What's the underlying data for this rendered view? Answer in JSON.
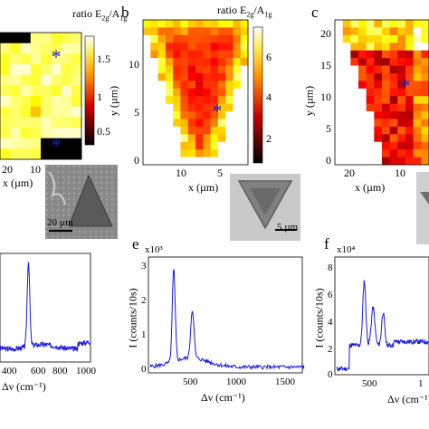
{
  "panel_a": {
    "letter": "",
    "cbar_label": "ratio E$_{2g}$/A$_{1g}$",
    "cbar_label_main": "ratio E",
    "cbar_label_sub1": "2g",
    "cbar_label_mid": "/A",
    "cbar_label_sub2": "1g",
    "cbar_ticks": [
      "1.5",
      "1",
      "0.5"
    ],
    "x_ticks": [
      "20",
      "10"
    ],
    "x_label": "x (µm)",
    "scale_bar": "20 µm"
  },
  "panel_b": {
    "letter": "b",
    "cbar_label_main": "ratio E",
    "cbar_label_sub1": "2g",
    "cbar_label_mid": "/A",
    "cbar_label_sub2": "1g",
    "cbar_ticks": [
      "6",
      "4",
      "2"
    ],
    "x_ticks": [
      "10",
      "5"
    ],
    "y_ticks": [
      "10",
      "5",
      "0"
    ],
    "x_label": "x (µm)",
    "y_label": "y (µm)",
    "scale_bar": "5 µm"
  },
  "panel_c": {
    "letter": "c",
    "x_ticks": [
      "20",
      "10"
    ],
    "y_ticks": [
      "20",
      "15",
      "10",
      "5",
      "0"
    ],
    "x_label": "x (µm)",
    "y_label": "y (µm)"
  },
  "panel_d": {
    "x_ticks": [
      "400",
      "600",
      "800",
      "1000"
    ],
    "x_label": "Δν (cm⁻¹)"
  },
  "panel_e": {
    "letter": "e",
    "exponent": "x10³",
    "y_ticks": [
      "3",
      "2",
      "1",
      "0"
    ],
    "x_ticks": [
      "500",
      "1000",
      "1500"
    ],
    "y_label": "I (counts/10s)",
    "x_label": "Δν (cm⁻¹)"
  },
  "panel_f": {
    "letter": "f",
    "exponent": "x10⁴",
    "y_ticks": [
      "8",
      "6",
      "4",
      "2",
      "0"
    ],
    "x_ticks": [
      "500",
      "1"
    ],
    "y_label": "I (counts/10s)",
    "x_label": "Δν (cm⁻¹)"
  },
  "colors": {
    "spectrum": "#1a1ad6",
    "marker": "#1a1ad6"
  }
}
